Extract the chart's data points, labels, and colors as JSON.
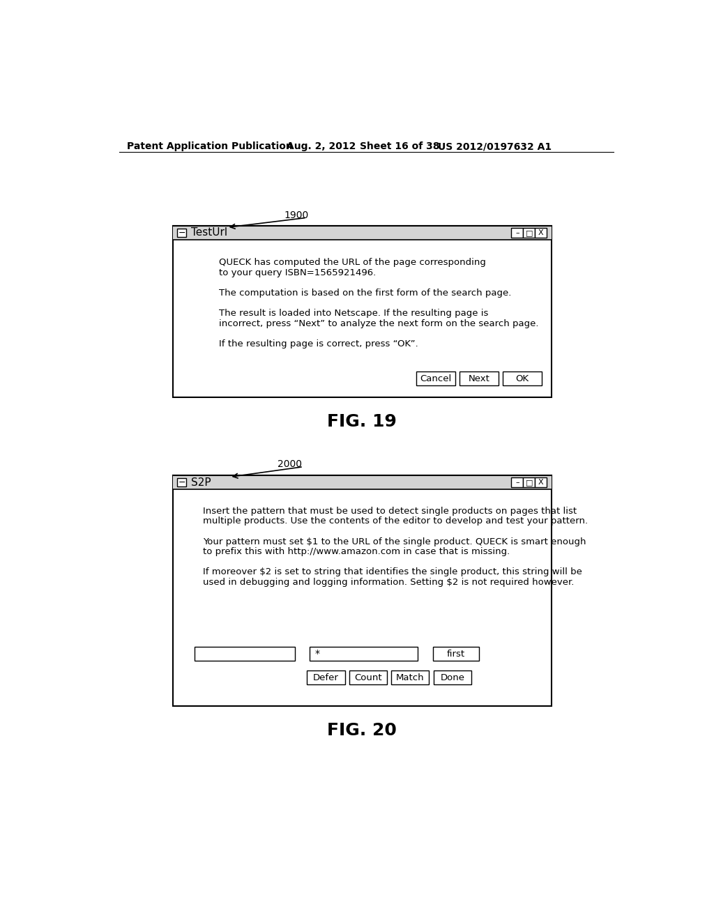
{
  "background_color": "#ffffff",
  "header_text": "Patent Application Publication",
  "header_date": "Aug. 2, 2012",
  "header_sheet": "Sheet 16 of 38",
  "header_patent": "US 2012/0197632 A1",
  "fig19": {
    "label": "1900",
    "title": "TestUrl",
    "body_lines": [
      "QUECK has computed the URL of the page corresponding",
      "to your query ISBN=1565921496.",
      "",
      "The computation is based on the first form of the search page.",
      "",
      "The result is loaded into Netscape. If the resulting page is",
      "incorrect, press “Next” to analyze the next form on the search page.",
      "",
      "If the resulting page is correct, press “OK”."
    ],
    "buttons": [
      "Cancel",
      "Next",
      "OK"
    ],
    "caption": "FIG. 19"
  },
  "fig20": {
    "label": "2000",
    "title": "S2P",
    "body_lines": [
      "Insert the pattern that must be used to detect single products on pages that list",
      "multiple products. Use the contents of the editor to develop and test your pattern.",
      "",
      "Your pattern must set $1 to the URL of the single product. QUECK is smart enough",
      "to prefix this with http://www.amazon.com in case that is missing.",
      "",
      "If moreover $2 is set to string that identifies the single product, this string will be",
      "used in debugging and logging information. Setting $2 is not required however."
    ],
    "input_star_label": "*",
    "input_first_label": "first",
    "buttons": [
      "Defer",
      "Count",
      "Match",
      "Done"
    ],
    "caption": "FIG. 20"
  }
}
